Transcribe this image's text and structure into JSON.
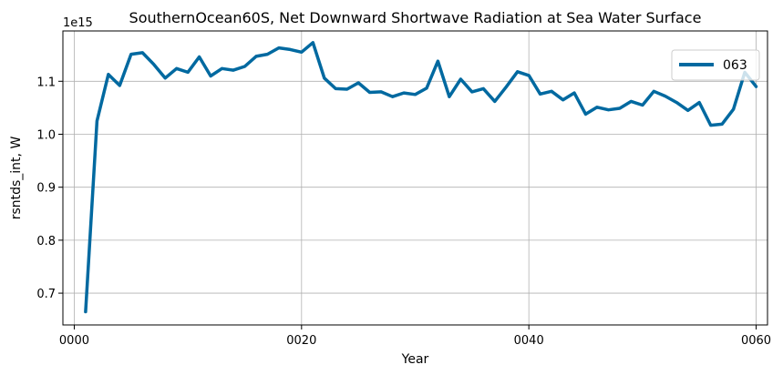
{
  "chart_data": {
    "type": "line",
    "title": "SouthernOcean60S, Net Downward Shortwave Radiation at Sea Water Surface",
    "xlabel": "Year",
    "ylabel": "rsntds_int, W",
    "y_offset_label": "1e15",
    "xlim": [
      -1,
      61
    ],
    "ylim": [
      0.64,
      1.195
    ],
    "x_ticks": [
      0,
      20,
      40,
      60
    ],
    "x_tick_labels": [
      "0000",
      "0020",
      "0040",
      "0060"
    ],
    "y_ticks": [
      0.7,
      0.8,
      0.9,
      1.0,
      1.1
    ],
    "y_tick_labels": [
      "0.7",
      "0.8",
      "0.9",
      "1.0",
      "1.1"
    ],
    "grid": true,
    "legend_position": "top-right",
    "series": [
      {
        "name": "063",
        "color": "#0069a0",
        "x": [
          1,
          2,
          3,
          4,
          5,
          6,
          7,
          8,
          9,
          10,
          11,
          12,
          13,
          14,
          15,
          16,
          17,
          18,
          19,
          20,
          21,
          22,
          23,
          24,
          25,
          26,
          27,
          28,
          29,
          30,
          31,
          32,
          33,
          34,
          35,
          36,
          37,
          38,
          39,
          40,
          41,
          42,
          43,
          44,
          45,
          46,
          47,
          48,
          49,
          50,
          51,
          52,
          53,
          54,
          55,
          56,
          57,
          58,
          59,
          60
        ],
        "values": [
          0.665,
          1.025,
          1.113,
          1.092,
          1.151,
          1.154,
          1.132,
          1.106,
          1.124,
          1.117,
          1.146,
          1.11,
          1.124,
          1.121,
          1.128,
          1.147,
          1.151,
          1.163,
          1.16,
          1.155,
          1.173,
          1.106,
          1.086,
          1.085,
          1.097,
          1.079,
          1.08,
          1.071,
          1.078,
          1.075,
          1.087,
          1.138,
          1.071,
          1.104,
          1.08,
          1.086,
          1.062,
          1.089,
          1.118,
          1.111,
          1.076,
          1.081,
          1.065,
          1.078,
          1.038,
          1.051,
          1.046,
          1.049,
          1.062,
          1.055,
          1.081,
          1.072,
          1.06,
          1.045,
          1.06,
          1.017,
          1.019,
          1.047,
          1.117,
          1.09
        ]
      }
    ]
  }
}
